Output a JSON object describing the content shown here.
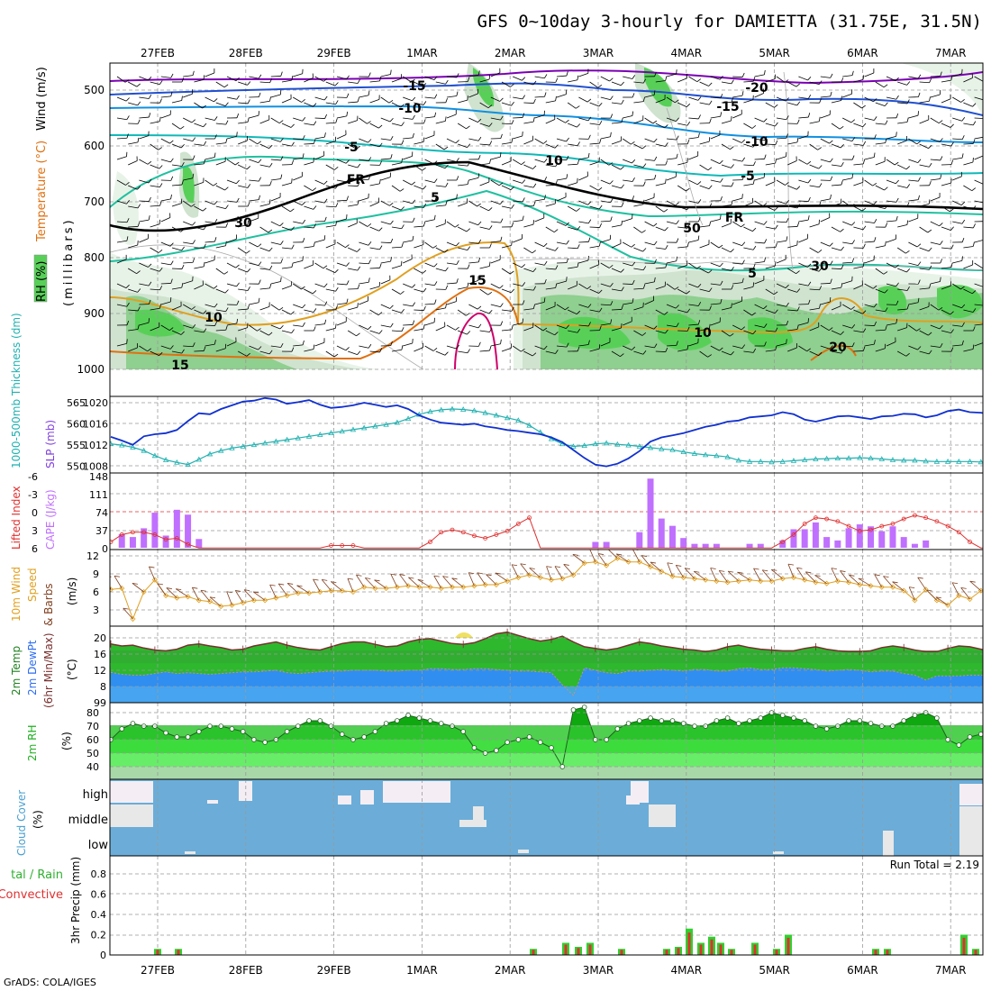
{
  "title": "GFS 0~10day 3-hourly for DAMIETTA (31.75E, 31.5N)",
  "credit": "GrADS: COLA/IGES",
  "run_total_label": "Run Total = 2.19",
  "colors": {
    "wind_barb": "#000000",
    "temp_cold": "#7b00b4",
    "temp_m15": "#2050d0",
    "temp_m10": "#1090e0",
    "temp_m5": "#10b8b8",
    "temp_fr": "#000000",
    "temp_5": "#20c0a0",
    "temp_10": "#e0a020",
    "temp_15": "#e07010",
    "temp_20": "#d0006a",
    "rh_light": "#e8f3e8",
    "rh_mid": "#cfe3cf",
    "rh_dark": "#8fcf8f",
    "rh_green": "#58d058",
    "slp": "#1030d0",
    "thickness": "#20b0b0",
    "cape_bar": "#c070ff",
    "lifted": "#e03030",
    "wind10_speed": "#e0a020",
    "wind10_barb": "#804020",
    "temp2m": "#2db82d",
    "temp2m_line": "#7a3030",
    "dewpt": "#2f8ef0",
    "rh2m": "#20d020",
    "cloud": "#6badd8",
    "precip_total": "#30d030",
    "precip_conv": "#e03030"
  },
  "dates": [
    "27FEB",
    "28FEB",
    "29FEB",
    "1MAR",
    "2MAR",
    "3MAR",
    "4MAR",
    "5MAR",
    "6MAR",
    "7MAR"
  ],
  "panels": {
    "upper": {
      "axis_label_rh": "RH (%)",
      "axis_label_temp": "Temperature (°C)",
      "axis_label_wind": "Wind (m/s)",
      "axis_label_mb": "(millibars)",
      "y_ticks": [
        "500",
        "600",
        "700",
        "800",
        "900",
        "1000"
      ],
      "contour_labels": [
        "-20",
        "-15",
        "-15",
        "-10",
        "-10",
        "-5",
        "-5",
        "FR",
        "FR",
        "5",
        "5",
        "10",
        "10",
        "15",
        "15",
        "20",
        "30",
        "30",
        "50",
        "10"
      ]
    },
    "slp": {
      "label_thickness": "1000-500mb Thickness (dm)",
      "label_slp": "SLP (mb)",
      "y_ticks_left": [
        "565",
        "560",
        "555",
        "550"
      ],
      "y_ticks_right": [
        "1020",
        "1016",
        "1012",
        "1008"
      ]
    },
    "cape": {
      "label_li": "Lifted Index",
      "label_cape": "CAPE (J/kg)",
      "y_ticks_left": [
        "-6",
        "-3",
        "0",
        "3",
        "6"
      ],
      "y_ticks_right": [
        "148",
        "111",
        "74",
        "37",
        "0"
      ]
    },
    "wind10": {
      "label_a": "10m Wind",
      "label_b": "Speed",
      "label_c": "& Barbs",
      "label_units": "(m/s)",
      "y_ticks": [
        "12",
        "9",
        "6",
        "3"
      ]
    },
    "temp2m": {
      "label_a": "2m Temp",
      "label_b": "2m DewPt",
      "label_c": "(6hr Min/Max)",
      "label_units": "(°C)",
      "y_ticks": [
        "20",
        "16",
        "12",
        "8",
        "99"
      ]
    },
    "rh2m": {
      "label_a": "2m RH",
      "label_units": "(%)",
      "y_ticks": [
        "80",
        "70",
        "60",
        "50",
        "40"
      ]
    },
    "cloud": {
      "label_a": "Cloud Cover",
      "label_units": "(%)",
      "levels": [
        "high",
        "middle",
        "low"
      ]
    },
    "precip": {
      "label_a": "tal / Rain",
      "label_b": "Convective",
      "label_c": "3hr Precip (mm)",
      "y_ticks": [
        "0.8",
        "0.6",
        "0.4",
        "0.2",
        "0"
      ]
    }
  },
  "chart_data": [
    {
      "type": "line",
      "name": "slp",
      "ylabel": "SLP (mb)",
      "ylim": [
        1007,
        1022
      ],
      "x_start_day": 0,
      "x_step_days": 0.125,
      "values": [
        1013.5,
        1012.8,
        1012.0,
        1013.6,
        1014.0,
        1014.2,
        1014.8,
        1016.5,
        1018.0,
        1017.8,
        1018.8,
        1019.5,
        1020.2,
        1020.4,
        1020.9,
        1020.6,
        1019.8,
        1020.1,
        1020.5,
        1019.6,
        1019.0,
        1019.2,
        1019.5,
        1020.0,
        1019.6,
        1019.2,
        1019.5,
        1018.8,
        1017.6,
        1016.8,
        1016.2,
        1016.0,
        1015.8,
        1016.0,
        1015.5,
        1015.2,
        1014.8,
        1014.6,
        1014.3,
        1014.0,
        1013.4,
        1012.5,
        1011.0,
        1009.5,
        1008.2,
        1007.9,
        1008.4,
        1009.4,
        1010.8,
        1012.6,
        1013.4,
        1013.8,
        1014.2,
        1014.8,
        1015.4,
        1015.8,
        1016.4,
        1016.6,
        1017.2,
        1017.4,
        1017.6,
        1018.2,
        1017.8,
        1016.8,
        1016.4,
        1016.9,
        1017.4,
        1017.5,
        1017.2,
        1016.9,
        1017.4,
        1017.5,
        1017.9,
        1017.8,
        1017.2,
        1017.6,
        1018.4,
        1018.7,
        1018.2,
        1018.1,
        1017.8,
        1018.9,
        1019.8,
        1019.3,
        1018.8,
        1018.9,
        1019.0,
        1019.2,
        1019.4,
        1019.6
      ]
    },
    {
      "type": "line",
      "name": "thickness",
      "ylabel": "1000-500mb Thickness (dm)",
      "ylim": [
        548,
        567
      ],
      "x_start_day": 0,
      "x_step_days": 0.125,
      "values": [
        555.2,
        554.9,
        554.4,
        553.6,
        552.4,
        551.4,
        550.8,
        550.3,
        551.5,
        552.8,
        553.6,
        554.2,
        554.6,
        555.0,
        555.4,
        555.8,
        556.2,
        556.6,
        557.0,
        557.4,
        557.8,
        558.2,
        558.6,
        559.0,
        559.4,
        559.8,
        560.3,
        561.2,
        562.2,
        562.9,
        563.3,
        563.5,
        563.4,
        563.1,
        562.6,
        562.0,
        561.4,
        560.8,
        559.6,
        558.0,
        556.4,
        555.2,
        554.6,
        554.8,
        555.2,
        555.4,
        555.1,
        554.9,
        554.6,
        554.3,
        554.0,
        553.8,
        553.3,
        552.9,
        552.6,
        552.4,
        552.1,
        551.3,
        551.0,
        551.0,
        550.9,
        551.0,
        551.2,
        551.4,
        551.6,
        551.7,
        551.8,
        551.8,
        551.9,
        551.8,
        551.6,
        551.4,
        551.3,
        551.3,
        551.1,
        551.0,
        551.0,
        551.0,
        551.0,
        550.9,
        550.9,
        550.8,
        550.6,
        550.5,
        550.4,
        550.2,
        550.0,
        549.6,
        549.2,
        549.0
      ]
    },
    {
      "type": "bar",
      "name": "cape",
      "ylabel": "CAPE (J/kg)",
      "ylim": [
        0,
        148
      ],
      "x_start_day": 0,
      "x_step_days": 0.125,
      "values": [
        0,
        28,
        22,
        40,
        72,
        25,
        78,
        68,
        18,
        0,
        0,
        0,
        0,
        0,
        0,
        0,
        0,
        0,
        0,
        0,
        0,
        0,
        0,
        0,
        0,
        0,
        0,
        0,
        0,
        0,
        0,
        0,
        0,
        0,
        0,
        0,
        0,
        0,
        0,
        0,
        0,
        0,
        0,
        0,
        12,
        12,
        0,
        0,
        32,
        142,
        60,
        45,
        20,
        8,
        8,
        8,
        0,
        0,
        8,
        8,
        0,
        15,
        38,
        38,
        52,
        22,
        15,
        40,
        48,
        44,
        34,
        44,
        22,
        8,
        15,
        0,
        0,
        0,
        0,
        0,
        0,
        20,
        8,
        0,
        5,
        5,
        0,
        5,
        8,
        15,
        15
      ]
    },
    {
      "type": "line",
      "name": "lifted_index",
      "ylabel": "Lifted Index",
      "ylim": [
        6,
        -6
      ],
      "x_start_day": 0,
      "x_step_days": 0.125,
      "values": [
        5.0,
        3.8,
        3.4,
        3.4,
        3.8,
        4.6,
        4.4,
        5.4,
        6,
        6,
        6,
        6,
        6,
        6,
        6,
        6,
        6,
        6,
        6,
        6,
        5.6,
        5.6,
        5.6,
        6,
        6,
        6,
        6,
        6,
        6,
        5,
        3.4,
        3.0,
        3.4,
        4.0,
        4.4,
        3.8,
        3.2,
        2.0,
        1.0,
        6,
        6,
        6,
        6,
        6,
        6,
        6,
        6,
        6,
        6,
        6,
        6,
        6,
        6,
        6,
        6,
        6,
        6,
        6,
        6,
        6,
        6,
        5.0,
        3.8,
        2.0,
        1.0,
        1.2,
        1.6,
        2.4,
        3.2,
        3.0,
        2.4,
        2.0,
        1.2,
        0.6,
        1.0,
        1.6,
        2.4,
        3.4,
        5.0,
        6,
        6,
        6,
        3.6,
        2.4,
        1.0,
        0.6,
        2.0,
        3.6,
        5.0,
        6,
        6,
        6,
        6,
        6,
        6,
        6
      ]
    },
    {
      "type": "line",
      "name": "wind10_speed",
      "ylabel": "10m Wind Speed (m/s)",
      "ylim": [
        0.5,
        12.5
      ],
      "x_start_day": 0,
      "x_step_days": 0.125,
      "values": [
        6.4,
        6.6,
        1.5,
        6.0,
        8.0,
        5.4,
        5.0,
        5.2,
        4.6,
        4.4,
        3.6,
        3.8,
        4.2,
        4.6,
        4.6,
        5.0,
        5.4,
        5.8,
        5.8,
        6.0,
        6.2,
        6.2,
        6.0,
        6.8,
        6.6,
        6.6,
        6.8,
        7.0,
        6.8,
        6.8,
        6.6,
        6.8,
        6.8,
        7.0,
        7.2,
        7.2,
        7.8,
        8.4,
        8.8,
        8.4,
        8.0,
        8.2,
        8.8,
        10.8,
        11.0,
        10.4,
        11.6,
        11.0,
        11.0,
        10.2,
        9.4,
        8.6,
        8.4,
        8.2,
        8.0,
        7.8,
        7.6,
        7.8,
        8.0,
        7.8,
        7.8,
        8.2,
        8.4,
        8.0,
        7.6,
        7.4,
        7.8,
        7.6,
        7.2,
        7.0,
        6.8,
        6.8,
        6.2,
        4.6,
        6.4,
        4.6,
        3.8,
        5.4,
        4.8,
        6.2,
        6.4,
        6.6,
        4.6,
        4.2,
        4.4,
        5.6,
        6.2,
        6.4,
        6.2,
        6.6,
        5.6,
        5.8,
        5.8,
        5.0,
        4.8,
        5.0
      ]
    },
    {
      "type": "area",
      "name": "temp2m",
      "ylabel": "2m Temp (°C)",
      "ylim": [
        4.5,
        22
      ],
      "x_start_day": 0,
      "x_step_days": 0.125,
      "series": [
        {
          "name": "2m Temp",
          "values": [
            18.5,
            18.0,
            18.2,
            17.5,
            17.0,
            16.8,
            17.2,
            18.2,
            18.5,
            18.0,
            17.6,
            17.0,
            17.2,
            18.0,
            18.5,
            19.0,
            18.2,
            17.6,
            17.2,
            17.0,
            17.8,
            18.6,
            19.0,
            19.0,
            18.4,
            17.8,
            18.0,
            19.0,
            19.6,
            19.8,
            19.2,
            18.6,
            18.4,
            18.8,
            19.8,
            21.0,
            21.4,
            20.6,
            19.8,
            19.2,
            19.6,
            20.4,
            19.0,
            17.8,
            17.4,
            17.0,
            17.4,
            18.2,
            19.0,
            18.6,
            18.0,
            17.6,
            17.2,
            17.0,
            16.6,
            17.0,
            17.8,
            18.2,
            17.6,
            17.2,
            17.0,
            16.8,
            16.8,
            17.4,
            17.8,
            17.2,
            16.8,
            16.6,
            16.6,
            16.8,
            17.6,
            18.0,
            17.6,
            17.0,
            16.6,
            16.6,
            17.4,
            18.0,
            17.8,
            17.2,
            16.6,
            16.2,
            15.6,
            15.0,
            15.4,
            16.0,
            16.8,
            17.0,
            16.6,
            16.2,
            16.0,
            16.0,
            15.8,
            15.8
          ]
        },
        {
          "name": "2m DewPt",
          "values": [
            11.5,
            11.0,
            10.8,
            10.8,
            11.2,
            11.6,
            11.2,
            11.4,
            11.2,
            11.0,
            11.2,
            11.4,
            11.6,
            11.6,
            11.8,
            12.0,
            11.4,
            11.2,
            11.4,
            11.6,
            11.8,
            11.8,
            12.0,
            12.0,
            12.0,
            11.8,
            11.8,
            12.0,
            12.0,
            12.4,
            12.4,
            12.2,
            12.2,
            12.4,
            12.4,
            12.2,
            12.0,
            11.8,
            11.8,
            11.6,
            11.4,
            8.4,
            5.8,
            12.6,
            12.0,
            11.4,
            11.2,
            11.8,
            11.8,
            12.0,
            12.2,
            12.0,
            11.8,
            12.2,
            12.2,
            11.8,
            11.8,
            12.4,
            12.6,
            12.2,
            12.2,
            12.6,
            12.6,
            12.4,
            12.2,
            11.8,
            12.0,
            12.2,
            12.0,
            11.6,
            11.8,
            11.8,
            11.2,
            10.8,
            9.6,
            10.6,
            10.6,
            10.6,
            10.8,
            10.8,
            10.8,
            10.6,
            10.4,
            10.4,
            10.6,
            10.6,
            10.4,
            10.2,
            10.0,
            9.8,
            9.6,
            9.4,
            9.2,
            8.8
          ]
        }
      ]
    },
    {
      "type": "area",
      "name": "rh2m",
      "ylabel": "2m RH (%)",
      "ylim": [
        33,
        85
      ],
      "x_start_day": 0,
      "x_step_days": 0.125,
      "values": [
        60,
        68,
        72,
        70,
        70,
        65,
        62,
        62,
        66,
        70,
        70,
        68,
        66,
        60,
        58,
        60,
        66,
        70,
        74,
        74,
        70,
        64,
        60,
        62,
        66,
        72,
        74,
        78,
        76,
        74,
        72,
        70,
        66,
        54,
        50,
        52,
        58,
        60,
        62,
        58,
        54,
        40,
        82,
        84,
        60,
        60,
        68,
        72,
        74,
        76,
        74,
        74,
        72,
        70,
        70,
        74,
        76,
        72,
        74,
        76,
        80,
        78,
        76,
        74,
        70,
        68,
        70,
        74,
        74,
        72,
        70,
        70,
        74,
        78,
        80,
        76,
        60,
        56,
        62,
        64,
        66,
        68,
        70,
        72,
        74,
        78,
        74,
        68,
        64,
        64,
        66,
        68,
        68,
        66,
        62
      ]
    }
  ]
}
